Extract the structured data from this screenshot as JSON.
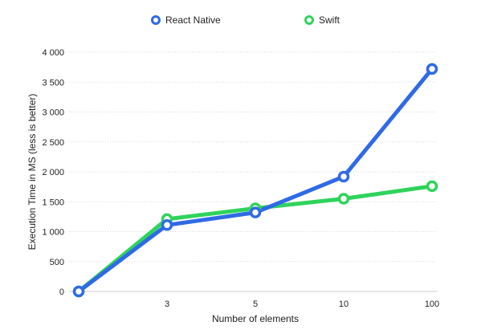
{
  "chart_data": {
    "type": "line",
    "title": "",
    "xlabel": "Number of elements",
    "ylabel": "Execution Time in MS (less is better)",
    "categories": [
      "",
      "3",
      "5",
      "10",
      "100"
    ],
    "yticks": [
      0,
      500,
      1000,
      1500,
      2000,
      2500,
      3000,
      3500,
      4000
    ],
    "ytick_labels": [
      "0",
      "500",
      "1 000",
      "1 500",
      "2 000",
      "2 500",
      "3 000",
      "3 500",
      "4 000"
    ],
    "ylim": [
      0,
      4000
    ],
    "grid": true,
    "legend_position": "top-center",
    "series": [
      {
        "name": "React Native",
        "color": "#2f6ae6",
        "values": [
          0,
          1110,
          1320,
          1920,
          3720
        ]
      },
      {
        "name": "Swift",
        "color": "#2fd35c",
        "values": [
          0,
          1210,
          1390,
          1550,
          1760
        ]
      }
    ]
  }
}
